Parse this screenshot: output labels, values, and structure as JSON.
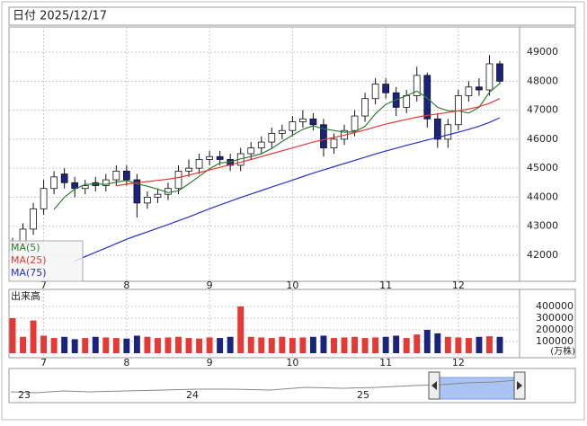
{
  "chart_data": {
    "type": "candlestick",
    "header": "日付 2025/12/17",
    "ylim": [
      41100,
      49870
    ],
    "yticks": [
      42000,
      43000,
      44000,
      45000,
      46000,
      47000,
      48000,
      49000
    ],
    "grid": true,
    "month_ticks": [
      {
        "value": 3,
        "label": "7"
      },
      {
        "value": 11,
        "label": "8"
      },
      {
        "value": 19,
        "label": "9"
      },
      {
        "value": 27,
        "label": "10"
      },
      {
        "value": 36,
        "label": "11"
      },
      {
        "value": 43,
        "label": "12"
      }
    ],
    "up_color": "#ffffff",
    "down_color": "#1a237e",
    "open": [
      42200,
      42400,
      42900,
      43600,
      44300,
      44800,
      44500,
      44300,
      44500,
      44400,
      44600,
      44900,
      44600,
      43800,
      44000,
      44100,
      44300,
      44900,
      45000,
      45300,
      45400,
      45300,
      45100,
      45500,
      45700,
      45900,
      46200,
      46300,
      46600,
      46700,
      46500,
      45700,
      46000,
      46300,
      46800,
      47400,
      47900,
      47600,
      47100,
      47500,
      48200,
      46700,
      46000,
      46500,
      47500,
      47800,
      47700,
      48600
    ],
    "high": [
      42600,
      43100,
      43800,
      44600,
      44900,
      45000,
      44700,
      44600,
      44700,
      44800,
      45100,
      45100,
      44800,
      44200,
      44300,
      44500,
      45100,
      45300,
      45500,
      45600,
      45600,
      45500,
      45700,
      45900,
      46100,
      46400,
      46500,
      46800,
      47000,
      46900,
      46700,
      46200,
      46500,
      47000,
      47600,
      48100,
      48100,
      47800,
      47700,
      48500,
      48300,
      46900,
      46700,
      47700,
      48000,
      48100,
      48900,
      48700
    ],
    "low": [
      42000,
      42200,
      42700,
      43400,
      44100,
      44300,
      44000,
      44100,
      44200,
      44200,
      44400,
      44400,
      43300,
      43600,
      43800,
      43900,
      44100,
      44700,
      44800,
      45100,
      45100,
      44900,
      44900,
      45300,
      45500,
      45700,
      46000,
      46100,
      46400,
      46300,
      45400,
      45500,
      45800,
      46100,
      46600,
      47200,
      47400,
      46800,
      46900,
      47300,
      46400,
      45700,
      45700,
      46300,
      47300,
      47500,
      47500,
      47900
    ],
    "close": [
      42400,
      42900,
      43600,
      44300,
      44700,
      44500,
      44300,
      44400,
      44400,
      44600,
      44900,
      44600,
      43800,
      44000,
      44100,
      44300,
      44900,
      45000,
      45300,
      45400,
      45300,
      45100,
      45500,
      45700,
      45900,
      46200,
      46300,
      46600,
      46700,
      46500,
      45700,
      46000,
      46300,
      46800,
      47400,
      47900,
      47600,
      47100,
      47500,
      48200,
      46700,
      46000,
      46500,
      47500,
      47800,
      47700,
      48600,
      48000
    ],
    "series": [
      {
        "name": "MA(5)",
        "color": "#2e7d32",
        "values": [
          null,
          null,
          null,
          null,
          43580,
          44000,
          44280,
          44440,
          44460,
          44440,
          44520,
          44580,
          44460,
          44380,
          44280,
          44160,
          44220,
          44460,
          44720,
          44980,
          45180,
          45220,
          45320,
          45400,
          45500,
          45680,
          45920,
          46140,
          46340,
          46460,
          46360,
          46300,
          46240,
          46260,
          46440,
          46880,
          47200,
          47360,
          47500,
          47660,
          47420,
          47100,
          46980,
          46980,
          46900,
          47100,
          47620,
          47920
        ]
      },
      {
        "name": "MA(25)",
        "color": "#e53935",
        "values": [
          null,
          null,
          null,
          null,
          null,
          null,
          null,
          null,
          null,
          null,
          44390,
          44450,
          44500,
          44540,
          44580,
          44620,
          44680,
          44760,
          44850,
          44940,
          45030,
          45120,
          45210,
          45300,
          45400,
          45500,
          45600,
          45700,
          45800,
          45900,
          45980,
          46060,
          46140,
          46230,
          46320,
          46420,
          46520,
          46600,
          46680,
          46760,
          46820,
          46870,
          46920,
          46980,
          47040,
          47120,
          47240,
          47400
        ]
      },
      {
        "name": "MA(75)",
        "color": "#2233cc",
        "values": [
          null,
          null,
          null,
          null,
          null,
          null,
          41800,
          41950,
          42100,
          42250,
          42400,
          42550,
          42680,
          42800,
          42930,
          43060,
          43190,
          43320,
          43460,
          43600,
          43730,
          43860,
          43990,
          44110,
          44230,
          44350,
          44470,
          44590,
          44710,
          44830,
          44940,
          45050,
          45160,
          45270,
          45380,
          45490,
          45590,
          45690,
          45790,
          45880,
          45970,
          46060,
          46150,
          46240,
          46340,
          46450,
          46580,
          46740
        ]
      }
    ],
    "volume": {
      "title": "出来高",
      "unit": "(万株)",
      "up_color": "#e53935",
      "down_color": "#1a237e",
      "ylim": [
        0,
        546000
      ],
      "yticks": [
        100000,
        200000,
        300000,
        400000
      ],
      "values": [
        300000,
        140000,
        280000,
        150000,
        130000,
        140000,
        120000,
        130000,
        140000,
        135000,
        130000,
        125000,
        150000,
        140000,
        130000,
        135000,
        140000,
        130000,
        125000,
        135000,
        130000,
        140000,
        400000,
        140000,
        135000,
        130000,
        140000,
        130000,
        135000,
        140000,
        150000,
        130000,
        135000,
        140000,
        130000,
        135000,
        140000,
        150000,
        130000,
        160000,
        200000,
        170000,
        140000,
        135000,
        130000,
        140000,
        145000,
        140000
      ]
    },
    "navigator_labels": [
      "23",
      "24",
      "25"
    ]
  }
}
